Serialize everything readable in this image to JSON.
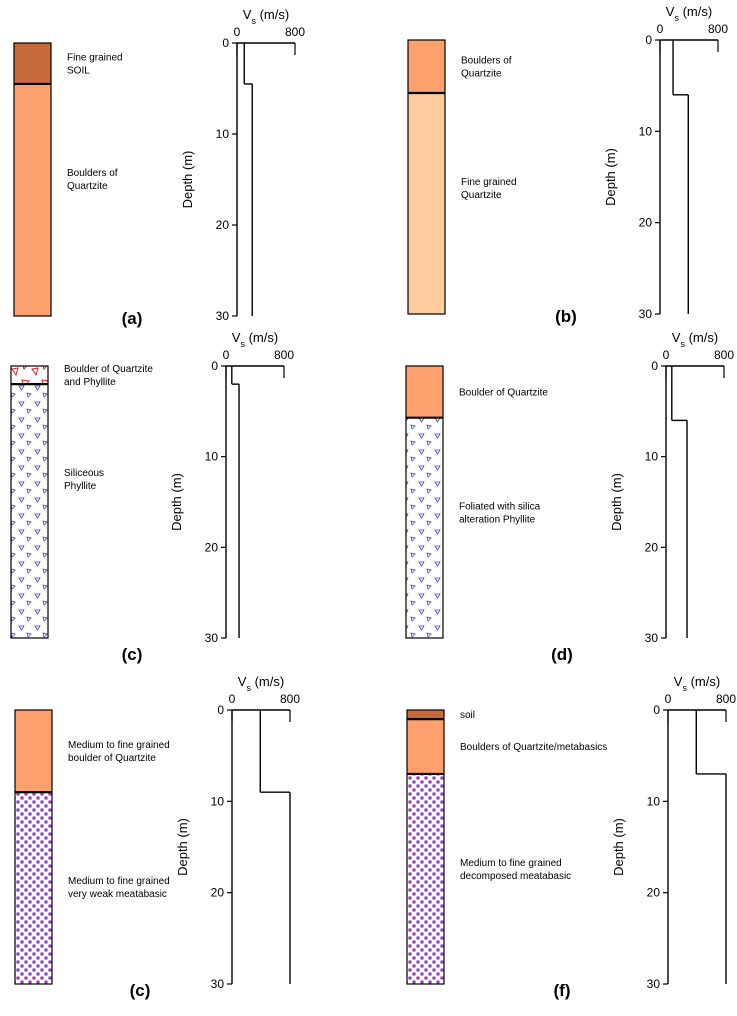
{
  "chart_data": [
    {
      "type": "step",
      "panel": "(a)",
      "xlabel": [
        "V",
        "s",
        " (m/s)"
      ],
      "ylabel": "Depth (m)",
      "xlim": [
        0,
        800
      ],
      "xticks": [
        0,
        800
      ],
      "ylim": [
        0,
        30
      ],
      "yticks": [
        0,
        10,
        20,
        30
      ],
      "layers": [
        {
          "label": [
            "Fine grained",
            "SOIL"
          ],
          "top": 0,
          "bottom": 4.5,
          "fill": "#c8693a"
        },
        {
          "label": [
            "Boulders of",
            "Quartzite"
          ],
          "top": 4.5,
          "bottom": 30,
          "fill": "#fda06e"
        }
      ],
      "depths": [
        0,
        4.5,
        30
      ],
      "vs": [
        100,
        210
      ]
    },
    {
      "type": "step",
      "panel": "(b)",
      "xlabel": [
        "V",
        "s",
        " (m/s)"
      ],
      "ylabel": "Depth (m)",
      "xlim": [
        0,
        800
      ],
      "xticks": [
        0,
        800
      ],
      "ylim": [
        0,
        30
      ],
      "yticks": [
        0,
        10,
        20,
        30
      ],
      "layers": [
        {
          "label": [
            "Boulders of",
            "Quartzite"
          ],
          "top": 0,
          "bottom": 5.8,
          "fill": "#fda06e"
        },
        {
          "label": [
            "Fine grained",
            "Quartzite"
          ],
          "top": 5.8,
          "bottom": 30,
          "fill": "#fdcc9c"
        }
      ],
      "depths": [
        0,
        6,
        30
      ],
      "vs": [
        180,
        390
      ]
    },
    {
      "type": "step",
      "panel": "(c)",
      "xlabel": [
        "V",
        "s",
        " (m/s)"
      ],
      "ylabel": "Depth (m)",
      "xlim": [
        0,
        800
      ],
      "xticks": [
        0,
        800
      ],
      "ylim": [
        0,
        30
      ],
      "yticks": [
        0,
        10,
        20,
        30
      ],
      "layers": [
        {
          "label": [
            "Boulder of Quartzite",
            "and Phyllite"
          ],
          "top": 0,
          "bottom": 2,
          "fill": "#ffffff",
          "pattern": "red-triangles"
        },
        {
          "label": [
            "Siliceous",
            "Phyllite"
          ],
          "top": 2,
          "bottom": 30,
          "fill": "#ffffff",
          "pattern": "blue-triangles"
        }
      ],
      "depths": [
        0,
        2,
        30
      ],
      "vs": [
        80,
        180
      ]
    },
    {
      "type": "step",
      "panel": "(d)",
      "xlabel": [
        "V",
        "s",
        " (m/s)"
      ],
      "ylabel": "Depth (m)",
      "xlim": [
        0,
        800
      ],
      "xticks": [
        0,
        800
      ],
      "ylim": [
        0,
        30
      ],
      "yticks": [
        0,
        10,
        20,
        30
      ],
      "layers": [
        {
          "label": [
            "Boulder of Quartzite"
          ],
          "top": 0,
          "bottom": 5.7,
          "fill": "#fda06e"
        },
        {
          "label": [
            "Foliated with silica",
            "alteration Phyllite"
          ],
          "top": 5.7,
          "bottom": 30,
          "fill": "#ffffff",
          "pattern": "blue-triangles"
        }
      ],
      "depths": [
        0,
        6,
        30
      ],
      "vs": [
        80,
        290
      ]
    },
    {
      "type": "step",
      "panel": "(c)",
      "xlabel": [
        "V",
        "s",
        " (m/s)"
      ],
      "ylabel": "Depth (m)",
      "xlim": [
        0,
        800
      ],
      "xticks": [
        0,
        800
      ],
      "ylim": [
        0,
        30
      ],
      "yticks": [
        0,
        10,
        20,
        30
      ],
      "layers": [
        {
          "label": [
            "Medium to fine grained",
            "boulder of Quartzite"
          ],
          "top": 0,
          "bottom": 9,
          "fill": "#fda06e"
        },
        {
          "label": [
            "Medium to fine grained",
            "very weak meatabasic"
          ],
          "top": 9,
          "bottom": 30,
          "fill": "#ffffff",
          "pattern": "purple-dots"
        }
      ],
      "depths": [
        0,
        9,
        30
      ],
      "vs": [
        390,
        800
      ]
    },
    {
      "type": "step",
      "panel": "(f)",
      "xlabel": [
        "V",
        "s",
        " (m/s)"
      ],
      "ylabel": "Depth (m)",
      "xlim": [
        0,
        800
      ],
      "xticks": [
        0,
        800
      ],
      "ylim": [
        0,
        30
      ],
      "yticks": [
        0,
        10,
        20,
        30
      ],
      "layers": [
        {
          "label": [
            "soil"
          ],
          "top": 0,
          "bottom": 1,
          "fill": "#c8693a"
        },
        {
          "label": [
            "Boulders of Quartzite/metabasics"
          ],
          "top": 1,
          "bottom": 7,
          "fill": "#fda06e"
        },
        {
          "label": [
            "Medium to fine grained",
            "decomposed meatabasic"
          ],
          "top": 7,
          "bottom": 30,
          "fill": "#ffffff",
          "pattern": "purple-dots"
        }
      ],
      "depths": [
        0,
        7,
        30
      ],
      "vs": [
        390,
        800
      ]
    }
  ]
}
